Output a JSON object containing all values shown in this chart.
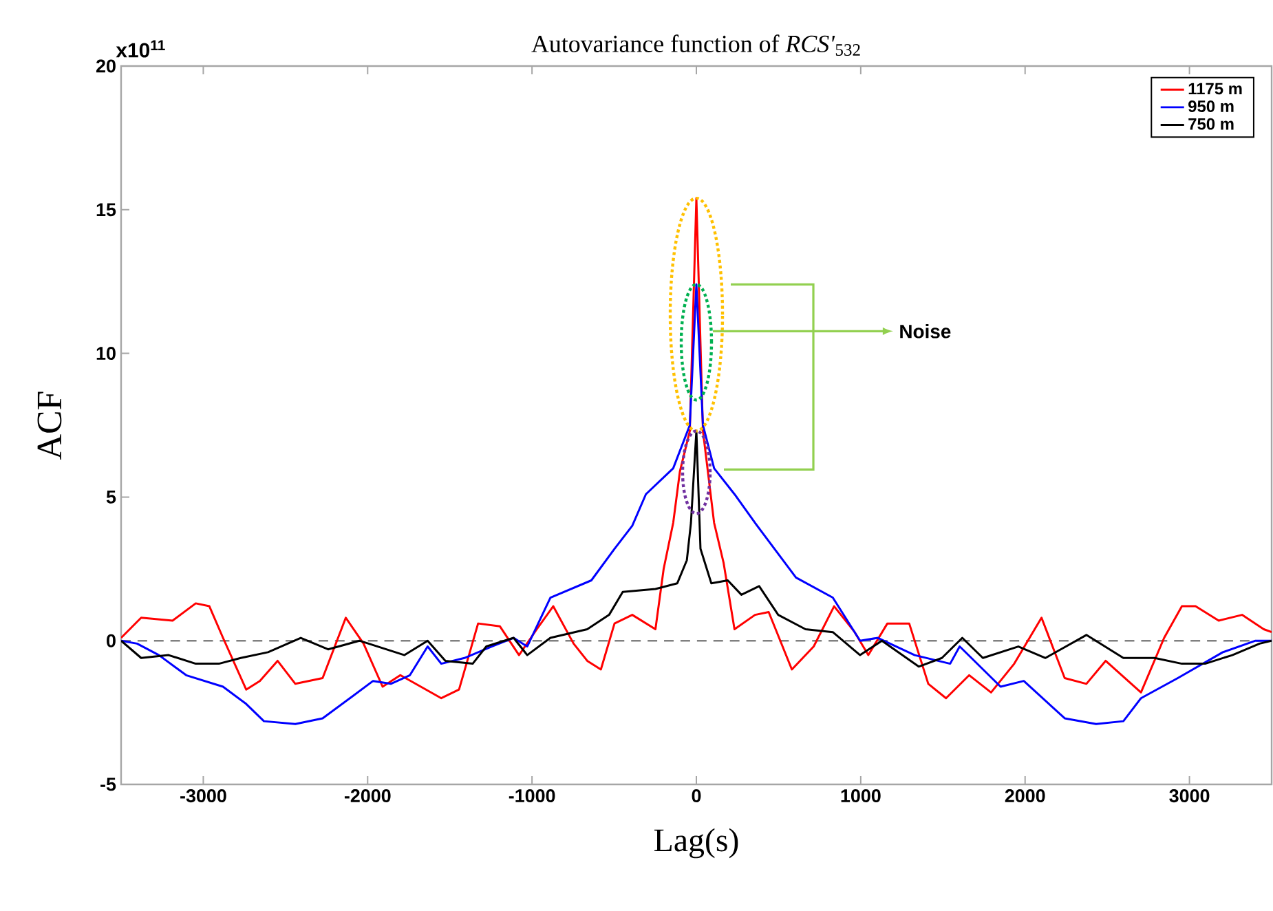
{
  "chart_data": {
    "type": "line",
    "title": "Autovariance function of *RCS'*$_{532}$",
    "xlabel": "Lag(s)",
    "ylabel": "ACF",
    "xlim": [
      -3500,
      3500
    ],
    "xticks": [
      -3000,
      -2000,
      -1000,
      0,
      1000,
      2000,
      3000
    ],
    "ylim": [
      -5,
      20
    ],
    "yticks": [
      -5,
      0,
      5,
      10,
      15,
      20
    ],
    "grid": false,
    "legend": "top right",
    "marker": "none",
    "line_style": "solid",
    "ref_lines": [
      {
        "axis": "y",
        "value": 0,
        "color": "#808080",
        "line_style": "dashed"
      }
    ],
    "annotations": [
      "x10$^{11}$",
      "Noise"
    ],
    "series": [
      {
        "name": "1175 m",
        "color": "#ff0000",
        "x": [
          -3500,
          -3378,
          -3187,
          -3046,
          -2963,
          -2880,
          -2739,
          -2656,
          -2548,
          -2440,
          -2274,
          -2133,
          -2025,
          -1909,
          -1801,
          -1552,
          -1444,
          -1328,
          -1195,
          -1079,
          -971,
          -871,
          -747,
          -664,
          -581,
          -498,
          -390,
          -249,
          -199,
          -141,
          -100,
          -40,
          0,
          40,
          108,
          166,
          232,
          357,
          440,
          581,
          714,
          838,
          963,
          1046,
          1162,
          1295,
          1411,
          1519,
          1660,
          1793,
          1934,
          2100,
          2241,
          2373,
          2490,
          2705,
          2846,
          2954,
          3037,
          3178,
          3320,
          3452,
          3500
        ],
        "values": [
          0.1,
          0.8,
          0.7,
          1.3,
          1.2,
          0.1,
          -1.7,
          -1.4,
          -0.7,
          -1.5,
          -1.3,
          0.8,
          -0.1,
          -1.6,
          -1.2,
          -2.0,
          -1.7,
          0.6,
          0.5,
          -0.5,
          0.4,
          1.2,
          -0.1,
          -0.7,
          -1.0,
          0.6,
          0.9,
          0.4,
          2.5,
          4.1,
          5.9,
          7.3,
          15.4,
          7.3,
          4.1,
          2.7,
          0.4,
          0.9,
          1.0,
          -1.0,
          -0.2,
          1.2,
          0.3,
          -0.5,
          0.6,
          0.6,
          -1.5,
          -2.0,
          -1.2,
          -1.8,
          -0.8,
          0.8,
          -1.3,
          -1.5,
          -0.7,
          -1.8,
          0.1,
          1.2,
          1.2,
          0.7,
          0.9,
          0.4,
          0.3
        ]
      },
      {
        "name": "950 m",
        "color": "#0000ff",
        "x": [
          -3500,
          -3403,
          -3270,
          -3104,
          -2880,
          -2739,
          -2631,
          -2440,
          -2274,
          -2108,
          -1967,
          -1859,
          -1743,
          -1635,
          -1552,
          -1411,
          -1245,
          -1112,
          -1029,
          -888,
          -639,
          -498,
          -390,
          -307,
          -141,
          -40,
          0,
          40,
          108,
          232,
          357,
          606,
          830,
          996,
          1104,
          1328,
          1544,
          1602,
          1851,
          1992,
          2241,
          2432,
          2598,
          2705,
          2929,
          3203,
          3402,
          3500
        ],
        "values": [
          0,
          -0.1,
          -0.5,
          -1.2,
          -1.6,
          -2.2,
          -2.8,
          -2.9,
          -2.7,
          -2.0,
          -1.4,
          -1.5,
          -1.2,
          -0.2,
          -0.8,
          -0.6,
          -0.2,
          0.1,
          -0.2,
          1.5,
          2.1,
          3.2,
          4.0,
          5.1,
          6.0,
          7.5,
          12.4,
          7.5,
          6.0,
          5.1,
          4.1,
          2.2,
          1.5,
          0.0,
          0.1,
          -0.5,
          -0.8,
          -0.2,
          -1.6,
          -1.4,
          -2.7,
          -2.9,
          -2.8,
          -2.0,
          -1.3,
          -0.4,
          0.0,
          0.0
        ]
      },
      {
        "name": "750 m",
        "color": "#000000",
        "x": [
          -3500,
          -3378,
          -3211,
          -3046,
          -2905,
          -2772,
          -2606,
          -2407,
          -2241,
          -2050,
          -1776,
          -1635,
          -1527,
          -1361,
          -1278,
          -1112,
          -1029,
          -888,
          -664,
          -531,
          -448,
          -249,
          -116,
          -58,
          -33,
          0,
          25,
          91,
          191,
          274,
          382,
          498,
          664,
          830,
          996,
          1129,
          1353,
          1494,
          1618,
          1743,
          1959,
          2124,
          2373,
          2598,
          2788,
          2954,
          3095,
          3261,
          3427,
          3500
        ],
        "values": [
          0,
          -0.6,
          -0.5,
          -0.8,
          -0.8,
          -0.6,
          -0.4,
          0.1,
          -0.3,
          0.0,
          -0.5,
          0.0,
          -0.7,
          -0.8,
          -0.2,
          0.1,
          -0.5,
          0.1,
          0.4,
          0.9,
          1.7,
          1.8,
          2.0,
          2.8,
          4.1,
          7.3,
          3.2,
          2.0,
          2.1,
          1.6,
          1.9,
          0.9,
          0.4,
          0.3,
          -0.5,
          0.0,
          -0.9,
          -0.6,
          0.1,
          -0.6,
          -0.2,
          -0.6,
          0.2,
          -0.6,
          -0.6,
          -0.8,
          -0.8,
          -0.5,
          -0.1,
          0
        ]
      }
    ]
  }
}
